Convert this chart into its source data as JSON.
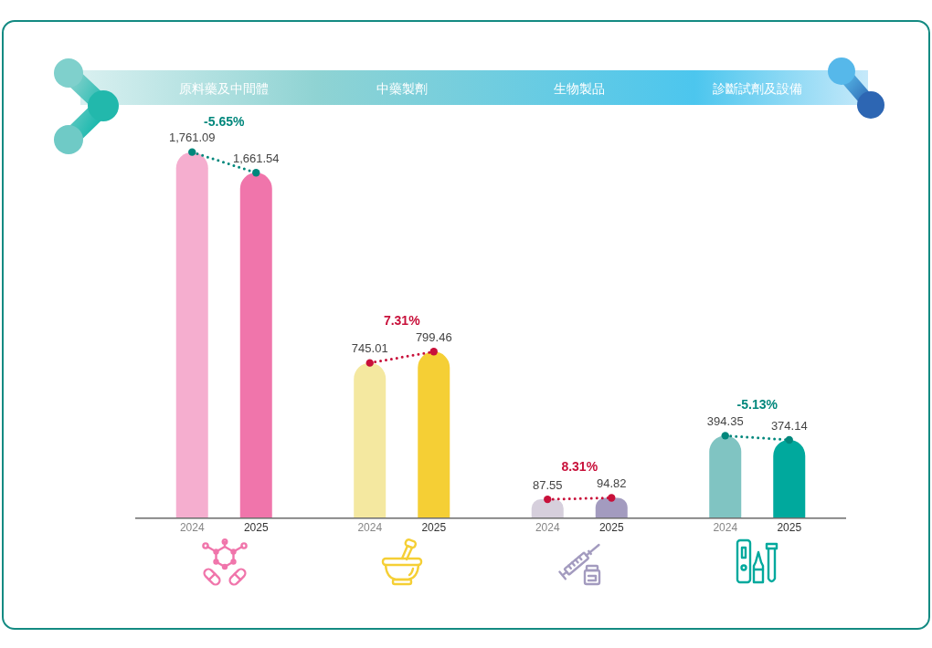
{
  "chart_data": {
    "type": "bar",
    "categories": [
      "原料藥及中間體",
      "中藥製劑",
      "生物製品",
      "診斷試劑及設備"
    ],
    "series": [
      {
        "name": "2024",
        "colors": [
          "#f5aecf",
          "#f4e8a0",
          "#d6cfdc",
          "#80c4c2"
        ],
        "values": [
          1761.09,
          745.01,
          87.55,
          394.35
        ],
        "value_labels": [
          "1,761.09",
          "745.01",
          "87.55",
          "394.35"
        ]
      },
      {
        "name": "2025",
        "colors": [
          "#f075ab",
          "#f5cf35",
          "#a39bbf",
          "#00a99d"
        ],
        "values": [
          1661.54,
          799.46,
          94.82,
          374.14
        ],
        "value_labels": [
          "1,661.54",
          "799.46",
          "94.82",
          "374.14"
        ]
      }
    ],
    "annotations": [
      "-5.65%",
      "7.31%",
      "8.31%",
      "-5.13%"
    ]
  }
}
